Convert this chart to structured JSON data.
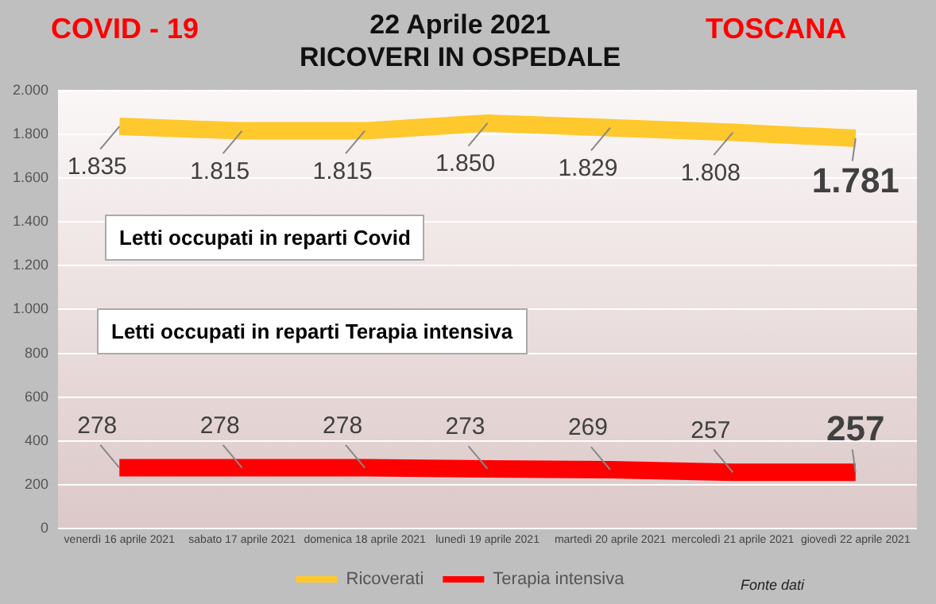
{
  "chart_data": {
    "type": "line",
    "title": "22 Aprile 2021",
    "subtitle": "RICOVERI IN OSPEDALE",
    "categories": [
      "venerdì 16 aprile 2021",
      "sabato 17 aprile 2021",
      "domenica 18 aprile 2021",
      "lunedì 19 aprile 2021",
      "martedì 20 aprile 2021",
      "mercoledì 21 aprile 2021",
      "giovedì 22 aprile 2021"
    ],
    "series": [
      {
        "name": "Ricoverati",
        "color": "#ffc82c",
        "values": [
          1835,
          1815,
          1815,
          1850,
          1829,
          1808,
          1781
        ],
        "value_labels": [
          "1.835",
          "1.815",
          "1.815",
          "1.850",
          "1.829",
          "1.808",
          "1.781"
        ]
      },
      {
        "name": "Terapia intensiva",
        "color": "#ff0000",
        "values": [
          278,
          278,
          278,
          273,
          269,
          257,
          257
        ],
        "value_labels": [
          "278",
          "278",
          "278",
          "273",
          "269",
          "257",
          "257"
        ]
      }
    ],
    "ylim": [
      0,
      2000
    ],
    "yticks": [
      0,
      {
        "value": 200,
        "label": "200"
      },
      {
        "value": 400,
        "label": "400"
      },
      {
        "value": 600,
        "label": "600"
      },
      {
        "value": 800,
        "label": "800"
      },
      {
        "value": 1000,
        "label": "1.000"
      },
      {
        "value": 1200,
        "label": "1.200"
      },
      {
        "value": 1400,
        "label": "1.400"
      },
      {
        "value": 1600,
        "label": "1.600"
      },
      {
        "value": 1800,
        "label": "1.800"
      },
      {
        "value": 2000,
        "label": "2.000"
      }
    ],
    "grid": "y",
    "legend": "bottom",
    "marker": "none",
    "line_style": "solid",
    "annotations": [
      "COVID - 19",
      "TOSCANA",
      "Letti occupati in reparti Covid",
      "Letti occupati in reparti Terapia intensiva",
      "Fonte dati"
    ]
  }
}
